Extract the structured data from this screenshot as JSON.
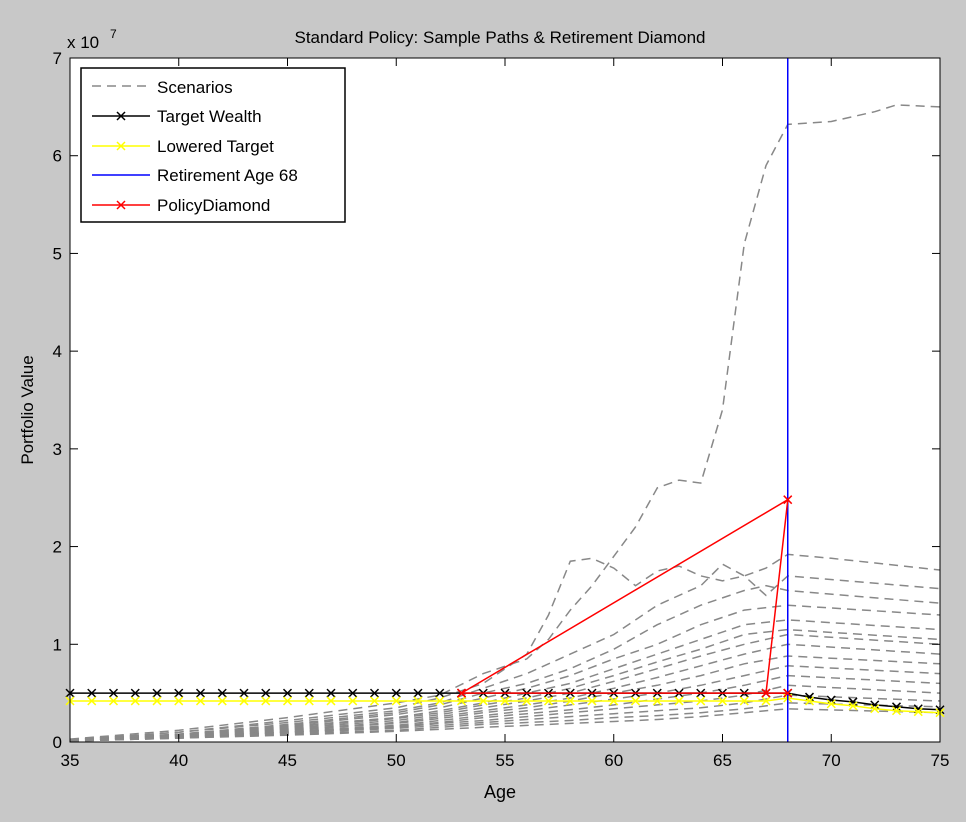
{
  "chart_data": {
    "type": "line",
    "title": "Standard Policy: Sample Paths & Retirement Diamond",
    "xlabel": "Age",
    "ylabel": "Portfolio Value",
    "y_multiplier": "x 10",
    "y_multiplier_exponent": "7",
    "xlim": [
      35,
      75
    ],
    "ylim": [
      0,
      7
    ],
    "x_ticks": [
      35,
      40,
      45,
      50,
      55,
      60,
      65,
      70,
      75
    ],
    "y_ticks": [
      0,
      1,
      2,
      3,
      4,
      5,
      6,
      7
    ],
    "grid": false,
    "legend_position": "top-left",
    "colors": {
      "figure_background": "#c8c8c8",
      "axes_background": "#ffffff",
      "scenarios": "#888888",
      "target": "#000000",
      "lowered": "#ffff00",
      "retirement": "#0000ff",
      "diamond": "#ff0000"
    },
    "legend": [
      {
        "label": "Scenarios",
        "style": "dashed",
        "marker": "",
        "color": "#888888"
      },
      {
        "label": "Target Wealth",
        "style": "solid",
        "marker": "x",
        "color": "#000000"
      },
      {
        "label": "Lowered Target",
        "style": "solid",
        "marker": "x",
        "color": "#ffff00"
      },
      {
        "label": "Retirement Age 68",
        "style": "solid",
        "marker": "",
        "color": "#0000ff"
      },
      {
        "label": "PolicyDiamond",
        "style": "solid",
        "marker": "x",
        "color": "#ff0000"
      }
    ],
    "retirement_age": 68,
    "target_wealth": {
      "x": [
        35,
        36,
        37,
        38,
        39,
        40,
        41,
        42,
        43,
        44,
        45,
        46,
        47,
        48,
        49,
        50,
        51,
        52,
        53,
        54,
        55,
        56,
        57,
        58,
        59,
        60,
        61,
        62,
        63,
        64,
        65,
        66,
        67,
        68,
        69,
        70,
        71,
        72,
        73,
        74,
        75
      ],
      "y": [
        0.5,
        0.5,
        0.5,
        0.5,
        0.5,
        0.5,
        0.5,
        0.5,
        0.5,
        0.5,
        0.5,
        0.5,
        0.5,
        0.5,
        0.5,
        0.5,
        0.5,
        0.5,
        0.5,
        0.5,
        0.5,
        0.5,
        0.5,
        0.5,
        0.5,
        0.5,
        0.5,
        0.5,
        0.5,
        0.5,
        0.5,
        0.5,
        0.5,
        0.5,
        0.46,
        0.43,
        0.41,
        0.38,
        0.36,
        0.34,
        0.33
      ]
    },
    "lowered_target": {
      "x": [
        35,
        36,
        37,
        38,
        39,
        40,
        41,
        42,
        43,
        44,
        45,
        46,
        47,
        48,
        49,
        50,
        51,
        52,
        53,
        54,
        55,
        56,
        57,
        58,
        59,
        60,
        61,
        62,
        63,
        64,
        65,
        66,
        67,
        68,
        69,
        70,
        71,
        72,
        73,
        74,
        75
      ],
      "y": [
        0.42,
        0.42,
        0.42,
        0.42,
        0.42,
        0.42,
        0.42,
        0.42,
        0.42,
        0.42,
        0.42,
        0.42,
        0.42,
        0.42,
        0.42,
        0.42,
        0.42,
        0.42,
        0.42,
        0.42,
        0.42,
        0.42,
        0.42,
        0.42,
        0.42,
        0.42,
        0.42,
        0.42,
        0.42,
        0.42,
        0.42,
        0.42,
        0.42,
        0.45,
        0.42,
        0.39,
        0.37,
        0.34,
        0.32,
        0.31,
        0.3
      ]
    },
    "policy_diamond": {
      "x": [
        53,
        68,
        67,
        53,
        68
      ],
      "y": [
        0.5,
        2.48,
        0.5,
        0.5,
        0.5
      ]
    },
    "scenarios": [
      {
        "x": [
          35,
          40,
          45,
          50,
          52,
          54,
          56,
          57,
          58,
          59,
          60,
          61,
          62,
          63,
          64,
          65,
          66,
          67,
          68,
          70,
          72,
          73,
          75
        ],
        "y": [
          0.03,
          0.12,
          0.25,
          0.4,
          0.48,
          0.7,
          0.85,
          1.05,
          1.35,
          1.6,
          1.9,
          2.2,
          2.6,
          2.68,
          2.65,
          3.4,
          5.1,
          5.9,
          6.32,
          6.35,
          6.45,
          6.52,
          6.5
        ]
      },
      {
        "x": [
          35,
          40,
          45,
          50,
          52,
          54,
          56,
          57,
          58,
          59,
          60,
          61,
          62,
          63,
          64,
          65,
          66,
          67,
          68,
          70,
          75
        ],
        "y": [
          0.02,
          0.1,
          0.22,
          0.35,
          0.45,
          0.6,
          0.9,
          1.3,
          1.85,
          1.88,
          1.78,
          1.6,
          1.75,
          1.8,
          1.7,
          1.65,
          1.7,
          1.78,
          1.92,
          1.88,
          1.76
        ]
      },
      {
        "x": [
          35,
          40,
          45,
          50,
          52,
          54,
          56,
          58,
          60,
          62,
          64,
          65,
          66,
          67,
          68,
          75
        ],
        "y": [
          0.02,
          0.1,
          0.2,
          0.32,
          0.4,
          0.55,
          0.7,
          0.9,
          1.1,
          1.4,
          1.6,
          1.82,
          1.7,
          1.5,
          1.7,
          1.57
        ]
      },
      {
        "x": [
          35,
          40,
          45,
          50,
          52,
          54,
          56,
          58,
          60,
          62,
          64,
          66,
          67,
          68,
          75
        ],
        "y": [
          0.02,
          0.08,
          0.18,
          0.3,
          0.38,
          0.5,
          0.6,
          0.75,
          0.95,
          1.2,
          1.4,
          1.55,
          1.6,
          1.55,
          1.42
        ]
      },
      {
        "x": [
          35,
          40,
          45,
          50,
          52,
          54,
          56,
          58,
          60,
          62,
          64,
          66,
          68,
          75
        ],
        "y": [
          0.02,
          0.08,
          0.17,
          0.28,
          0.35,
          0.45,
          0.55,
          0.68,
          0.85,
          1.0,
          1.2,
          1.35,
          1.4,
          1.3
        ]
      },
      {
        "x": [
          35,
          40,
          45,
          50,
          52,
          54,
          56,
          58,
          60,
          62,
          64,
          66,
          68,
          75
        ],
        "y": [
          0.02,
          0.08,
          0.16,
          0.25,
          0.32,
          0.4,
          0.5,
          0.6,
          0.75,
          0.9,
          1.05,
          1.2,
          1.25,
          1.15
        ]
      },
      {
        "x": [
          35,
          40,
          45,
          50,
          52,
          54,
          56,
          58,
          60,
          62,
          64,
          66,
          68,
          75
        ],
        "y": [
          0.01,
          0.07,
          0.15,
          0.24,
          0.3,
          0.38,
          0.45,
          0.55,
          0.68,
          0.82,
          0.95,
          1.1,
          1.15,
          1.05
        ]
      },
      {
        "x": [
          35,
          40,
          45,
          50,
          52,
          54,
          56,
          58,
          60,
          62,
          64,
          66,
          68,
          75
        ],
        "y": [
          0.01,
          0.07,
          0.14,
          0.22,
          0.28,
          0.35,
          0.42,
          0.5,
          0.62,
          0.75,
          0.88,
          1.0,
          1.1,
          1.0
        ]
      },
      {
        "x": [
          35,
          40,
          45,
          50,
          52,
          54,
          56,
          58,
          60,
          62,
          64,
          66,
          68,
          75
        ],
        "y": [
          0.01,
          0.06,
          0.13,
          0.2,
          0.26,
          0.32,
          0.38,
          0.45,
          0.55,
          0.66,
          0.78,
          0.9,
          1.0,
          0.9
        ]
      },
      {
        "x": [
          35,
          40,
          45,
          50,
          52,
          54,
          56,
          58,
          60,
          62,
          64,
          66,
          68,
          75
        ],
        "y": [
          0.01,
          0.06,
          0.12,
          0.19,
          0.24,
          0.3,
          0.35,
          0.42,
          0.5,
          0.58,
          0.68,
          0.8,
          0.88,
          0.8
        ]
      },
      {
        "x": [
          35,
          40,
          45,
          50,
          52,
          54,
          56,
          58,
          60,
          62,
          64,
          66,
          68,
          75
        ],
        "y": [
          0.01,
          0.05,
          0.11,
          0.17,
          0.22,
          0.27,
          0.32,
          0.38,
          0.44,
          0.5,
          0.58,
          0.68,
          0.78,
          0.7
        ]
      },
      {
        "x": [
          35,
          40,
          45,
          50,
          52,
          54,
          56,
          58,
          60,
          62,
          64,
          66,
          68,
          75
        ],
        "y": [
          0.01,
          0.05,
          0.1,
          0.16,
          0.2,
          0.25,
          0.29,
          0.33,
          0.38,
          0.44,
          0.5,
          0.58,
          0.68,
          0.6
        ]
      },
      {
        "x": [
          35,
          40,
          45,
          50,
          52,
          54,
          56,
          58,
          60,
          62,
          64,
          66,
          68,
          75
        ],
        "y": [
          0.01,
          0.05,
          0.1,
          0.15,
          0.19,
          0.22,
          0.26,
          0.3,
          0.34,
          0.38,
          0.42,
          0.48,
          0.58,
          0.5
        ]
      },
      {
        "x": [
          35,
          40,
          45,
          50,
          52,
          54,
          56,
          58,
          60,
          62,
          64,
          66,
          68,
          75
        ],
        "y": [
          0.01,
          0.04,
          0.09,
          0.14,
          0.17,
          0.2,
          0.23,
          0.26,
          0.29,
          0.32,
          0.35,
          0.4,
          0.48,
          0.42
        ]
      },
      {
        "x": [
          35,
          40,
          45,
          50,
          52,
          54,
          56,
          58,
          60,
          62,
          64,
          66,
          68,
          75
        ],
        "y": [
          0.01,
          0.04,
          0.08,
          0.12,
          0.15,
          0.18,
          0.2,
          0.22,
          0.25,
          0.27,
          0.3,
          0.34,
          0.4,
          0.36
        ]
      },
      {
        "x": [
          35,
          40,
          45,
          50,
          52,
          54,
          56,
          58,
          60,
          62,
          64,
          66,
          68,
          75
        ],
        "y": [
          0.01,
          0.04,
          0.07,
          0.11,
          0.13,
          0.15,
          0.17,
          0.19,
          0.21,
          0.23,
          0.26,
          0.3,
          0.34,
          0.3
        ]
      }
    ]
  }
}
